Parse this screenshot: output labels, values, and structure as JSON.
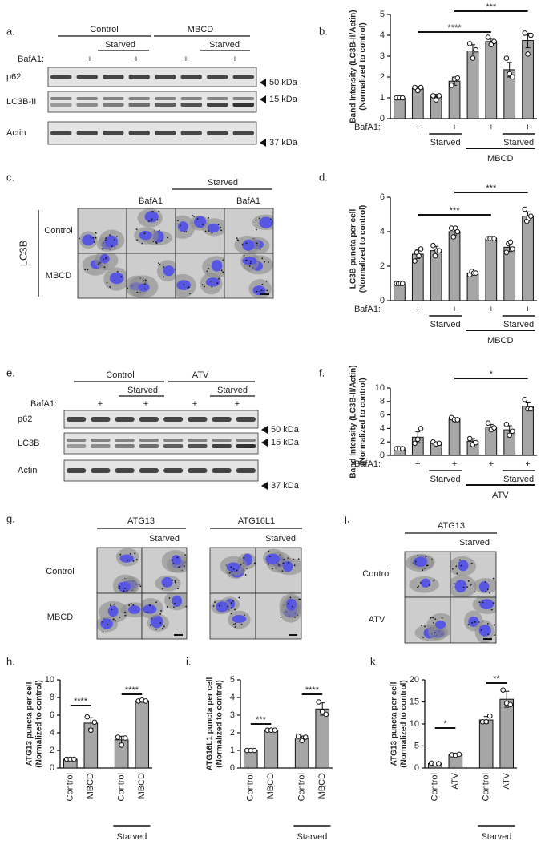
{
  "blot_a": {
    "panel": "a.",
    "groups": [
      "Control",
      "MBCD"
    ],
    "starved": [
      "Starved",
      "Starved"
    ],
    "row_label": "BafA1:",
    "marks": [
      "+",
      "+",
      "+",
      "+"
    ],
    "bands": [
      "p62",
      "LC3B-II",
      "Actin"
    ],
    "sizes": [
      "50 kDa",
      "15 kDa",
      "37 kDa"
    ]
  },
  "images_c": {
    "panel": "c.",
    "stain": "LC3B",
    "starved": "Starved",
    "columns": [
      "BafA1",
      "BafA1"
    ],
    "rows": [
      "Control",
      "MBCD"
    ]
  },
  "blot_e": {
    "panel": "e.",
    "groups": [
      "Control",
      "ATV"
    ],
    "starved": [
      "Starved",
      "Starved"
    ],
    "row_label": "BafA1:",
    "marks": [
      "+",
      "+",
      "+",
      "+"
    ],
    "bands": [
      "p62",
      "LC3B",
      "Actin"
    ],
    "sizes": [
      "50 kDa",
      "15 kDa",
      "37 kDa"
    ]
  },
  "images_g": {
    "panel": "g.",
    "groups": [
      "ATG13",
      "ATG16L1"
    ],
    "starved": [
      "Starved",
      "Starved"
    ],
    "rows": [
      "Control",
      "MBCD"
    ]
  },
  "images_j": {
    "panel": "j.",
    "group": "ATG13",
    "starved": "Starved",
    "rows": [
      "Control",
      "ATV"
    ]
  },
  "chart_data": [
    {
      "type": "bar",
      "panel": "b.",
      "ylabel": [
        "Band Intensity (LC3B-II/Actin)",
        "(Normalized to control)"
      ],
      "color": "#a6a6a6",
      "ylim": [
        0,
        5
      ],
      "yticks": [
        0,
        1,
        2,
        3,
        4,
        5
      ],
      "values": [
        1.0,
        1.45,
        1.05,
        1.8,
        3.25,
        3.7,
        2.35,
        3.75
      ],
      "errors": [
        0.02,
        0.1,
        0.12,
        0.2,
        0.3,
        0.15,
        0.35,
        0.35
      ],
      "points": [
        [
          1,
          1,
          1
        ],
        [
          1.5,
          1.35,
          1.5
        ],
        [
          1.1,
          0.9,
          1.1
        ],
        [
          1.6,
          1.9,
          1.95
        ],
        [
          3.6,
          2.9,
          3.3
        ],
        [
          3.9,
          3.55,
          3.7
        ],
        [
          2.9,
          2.15,
          2.0
        ],
        [
          4.1,
          3.1,
          4.0
        ]
      ],
      "row_label": "BafA1:",
      "row_marks": [
        null,
        "+",
        null,
        "+",
        null,
        "+",
        null,
        "+"
      ],
      "brackets": [
        "Starved",
        "Starved",
        "MBCD"
      ],
      "significance": [
        "****",
        "***"
      ]
    },
    {
      "type": "bar",
      "panel": "d.",
      "ylabel": [
        "LC3B puncta per cell",
        "(Normalized to control)"
      ],
      "color": "#a6a6a6",
      "ylim": [
        0,
        6
      ],
      "yticks": [
        0,
        2,
        4,
        6
      ],
      "values": [
        1.0,
        2.7,
        2.9,
        4.0,
        1.6,
        3.6,
        3.1,
        4.9
      ],
      "errors": [
        0.02,
        0.25,
        0.25,
        0.2,
        0.12,
        0.03,
        0.25,
        0.25
      ],
      "points": [
        [
          1,
          1,
          1,
          1
        ],
        [
          2.3,
          2.8,
          2.6,
          3.0
        ],
        [
          3.2,
          2.6,
          2.9,
          2.9
        ],
        [
          4.2,
          3.7,
          4.2,
          4.0
        ],
        [
          1.5,
          1.7,
          1.6,
          1.6
        ],
        [
          3.6,
          3.6,
          3.6,
          3.6
        ],
        [
          2.8,
          3.3,
          3.4,
          3.0
        ],
        [
          5.3,
          4.6,
          4.8,
          4.9
        ]
      ],
      "row_label": "BafA1:",
      "row_marks": [
        null,
        "+",
        null,
        "+",
        null,
        "+",
        null,
        "+"
      ],
      "brackets": [
        "Starved",
        "Starved",
        "MBCD"
      ],
      "significance": [
        "***",
        "***"
      ]
    },
    {
      "type": "bar",
      "panel": "f.",
      "ylabel": [
        "Band Intensity (LC3B-II/Actin)",
        "(Normalized to control)"
      ],
      "color": "#a6a6a6",
      "ylim": [
        0,
        10
      ],
      "yticks": [
        0,
        2,
        4,
        6,
        8,
        10
      ],
      "values": [
        1.0,
        2.7,
        1.8,
        5.4,
        2.1,
        4.2,
        3.8,
        7.3
      ],
      "errors": [
        0.05,
        0.8,
        0.2,
        0.15,
        0.4,
        0.4,
        0.6,
        0.5
      ],
      "points": [
        [
          1,
          1,
          1
        ],
        [
          1.8,
          2.4,
          4.0
        ],
        [
          2.0,
          1.7,
          1.8
        ],
        [
          5.6,
          5.3,
          5.3
        ],
        [
          2.5,
          1.6,
          1.9
        ],
        [
          4.8,
          3.8,
          4.1
        ],
        [
          4.6,
          3.0,
          3.6
        ],
        [
          8.3,
          6.9,
          6.9
        ]
      ],
      "row_label": "BafA1:",
      "row_marks": [
        null,
        "+",
        null,
        "+",
        null,
        "+",
        null,
        "+"
      ],
      "brackets": [
        "Starved",
        "Starved",
        "ATV"
      ],
      "significance": [
        "*"
      ]
    },
    {
      "type": "bar",
      "panel": "h.",
      "ylabel": [
        "ATG13 puncta per cell",
        "(Normalized to control)"
      ],
      "color": "#a6a6a6",
      "ylim": [
        0,
        10
      ],
      "yticks": [
        0,
        2,
        4,
        6,
        8,
        10
      ],
      "categories": [
        "Control",
        "MBCD",
        "Control",
        "MBCD"
      ],
      "values": [
        1.0,
        5.1,
        3.2,
        7.6
      ],
      "errors": [
        0.05,
        0.6,
        0.4,
        0.05
      ],
      "points": [
        [
          1,
          1,
          1
        ],
        [
          5.8,
          4.3,
          5.2
        ],
        [
          3.5,
          2.6,
          3.4
        ],
        [
          7.6,
          7.7,
          7.6
        ]
      ],
      "brackets": [
        "Starved"
      ],
      "significance": [
        "****",
        "****"
      ]
    },
    {
      "type": "bar",
      "panel": "i.",
      "ylabel": [
        "ATG16L1 puncta per cell",
        "(Normalized to control)"
      ],
      "color": "#a6a6a6",
      "ylim": [
        0,
        5
      ],
      "yticks": [
        0,
        1,
        2,
        3,
        4,
        5
      ],
      "categories": [
        "Control",
        "MBCD",
        "Control",
        "MBCD"
      ],
      "values": [
        1.0,
        2.15,
        1.7,
        3.35
      ],
      "errors": [
        0.02,
        0.03,
        0.12,
        0.35
      ],
      "points": [
        [
          1,
          1,
          1
        ],
        [
          2.15,
          2.15,
          2.15
        ],
        [
          1.8,
          1.55,
          1.75
        ],
        [
          3.75,
          3.2,
          3.05
        ]
      ],
      "brackets": [
        "Starved"
      ],
      "significance": [
        "***",
        "****"
      ]
    },
    {
      "type": "bar",
      "panel": "k.",
      "ylabel": [
        "ATG13 puncta per cell",
        "(Normalized to control)"
      ],
      "color": "#a6a6a6",
      "ylim": [
        0,
        20
      ],
      "yticks": [
        0,
        5,
        10,
        15,
        20
      ],
      "categories": [
        "Control",
        "ATV",
        "Control",
        "ATV"
      ],
      "values": [
        1.0,
        3.0,
        10.9,
        15.6
      ],
      "errors": [
        0.2,
        0.2,
        0.8,
        1.8
      ],
      "points": [
        [
          1.1,
          0.9,
          1.0
        ],
        [
          3.0,
          2.9,
          3.1
        ],
        [
          10.5,
          10.5,
          11.8
        ],
        [
          17.7,
          14.7,
          14.4
        ]
      ],
      "brackets": [
        "Starved"
      ],
      "significance": [
        "*",
        "**"
      ]
    }
  ]
}
